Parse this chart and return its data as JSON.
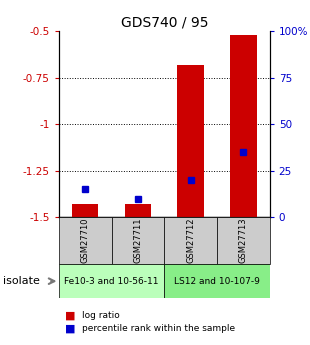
{
  "title": "GDS740 / 95",
  "samples": [
    "GSM27710",
    "GSM27711",
    "GSM27712",
    "GSM27713"
  ],
  "log_ratios": [
    -1.43,
    -1.43,
    -0.68,
    -0.52
  ],
  "percentile_ranks": [
    15,
    10,
    20,
    35
  ],
  "ylim_left": [
    -1.5,
    -0.5
  ],
  "ylim_right": [
    0,
    100
  ],
  "yticks_left": [
    -1.5,
    -1.25,
    -1.0,
    -0.75,
    -0.5
  ],
  "yticks_right": [
    0,
    25,
    50,
    75,
    100
  ],
  "ytick_labels_left": [
    "-1.5",
    "-1.25",
    "-1",
    "-0.75",
    "-0.5"
  ],
  "ytick_labels_right": [
    "0",
    "25",
    "50",
    "75",
    "100%"
  ],
  "groups": [
    {
      "label": "Fe10-3 and 10-56-11",
      "samples": [
        0,
        1
      ],
      "color": "#bbffbb"
    },
    {
      "label": "LS12 and 10-107-9",
      "samples": [
        2,
        3
      ],
      "color": "#88ee88"
    }
  ],
  "bar_color": "#cc0000",
  "marker_color": "#0000cc",
  "bar_width": 0.5,
  "label_bg": "#cccccc",
  "isolate_label": "isolate",
  "legend_items": [
    {
      "label": "log ratio",
      "color": "#cc0000"
    },
    {
      "label": "percentile rank within the sample",
      "color": "#0000cc"
    }
  ]
}
